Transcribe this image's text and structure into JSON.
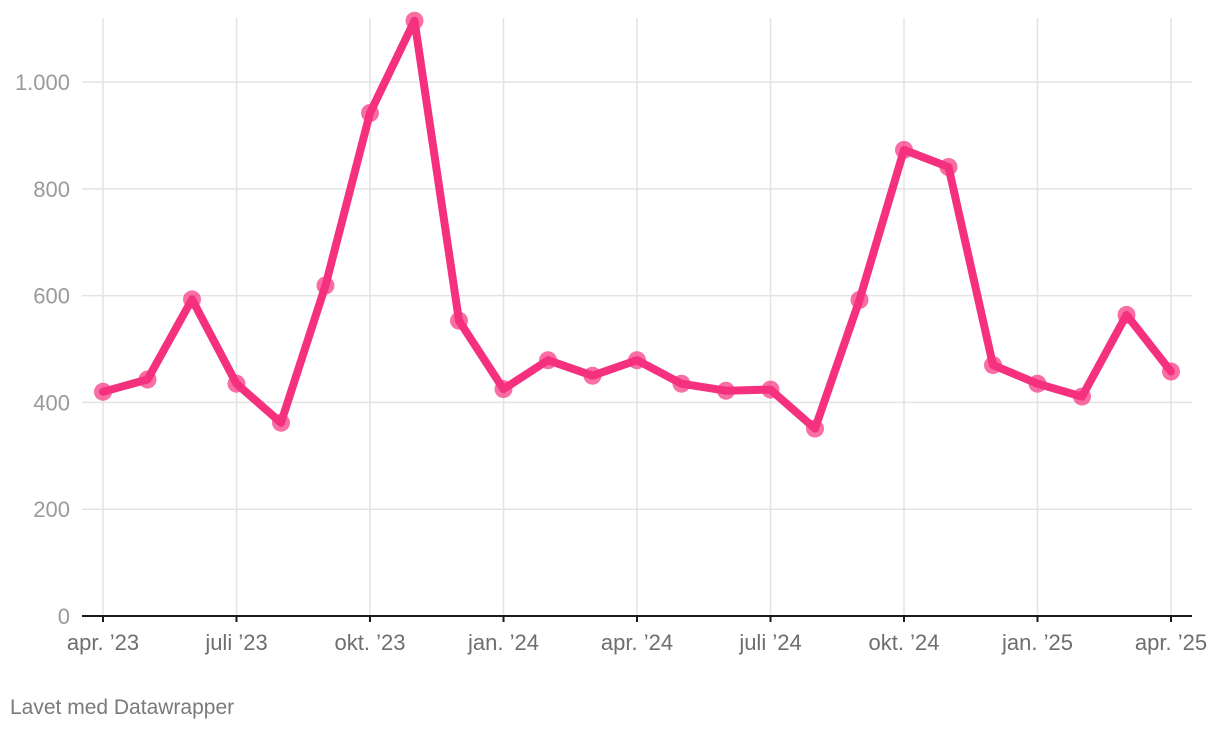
{
  "chart_data": {
    "type": "line",
    "x": [
      "2023-04",
      "2023-05",
      "2023-06",
      "2023-07",
      "2023-08",
      "2023-09",
      "2023-10",
      "2023-11",
      "2023-12",
      "2024-01",
      "2024-02",
      "2024-03",
      "2024-04",
      "2024-05",
      "2024-06",
      "2024-07",
      "2024-08",
      "2024-09",
      "2024-10",
      "2024-11",
      "2024-12",
      "2025-01",
      "2025-02",
      "2025-03",
      "2025-04"
    ],
    "series": [
      {
        "values": [
          420,
          443,
          593,
          435,
          362,
          619,
          942,
          1115,
          553,
          425,
          479,
          450,
          479,
          435,
          422,
          424,
          351,
          592,
          873,
          841,
          470,
          435,
          411,
          564,
          458
        ],
        "color": "#f5317f"
      }
    ],
    "x_tick_labels": [
      "apr. ’23",
      "juli ’23",
      "okt. ’23",
      "jan. ’24",
      "apr. ’24",
      "juli ’24",
      "okt. ’24",
      "jan. ’25",
      "apr. ’25"
    ],
    "x_tick_dates": [
      "2023-04",
      "2023-07",
      "2023-10",
      "2024-01",
      "2024-04",
      "2024-07",
      "2024-10",
      "2025-01",
      "2025-04"
    ],
    "y_ticks": [
      0,
      200,
      400,
      600,
      800,
      1000
    ],
    "y_tick_labels": [
      "0",
      "200",
      "400",
      "600",
      "800",
      "1.000"
    ],
    "ylim": [
      0,
      1120
    ],
    "grid": true,
    "title": "",
    "xlabel": "",
    "ylabel": ""
  },
  "footer": {
    "credit": "Lavet med Datawrapper"
  }
}
